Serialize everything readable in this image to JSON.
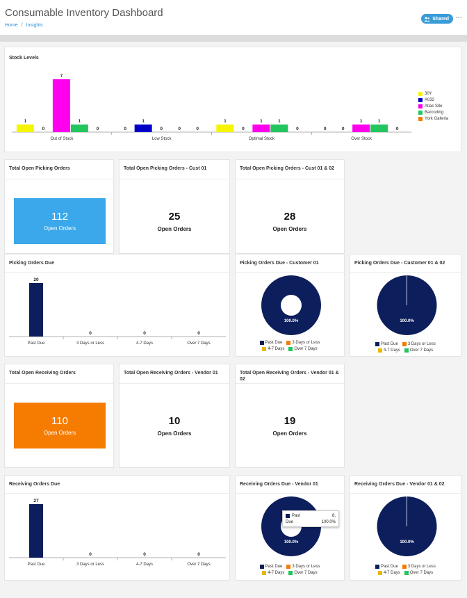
{
  "header": {
    "title": "Consumable Inventory Dashboard",
    "breadcrumb": [
      "Home",
      "/",
      "Insights"
    ],
    "shared_label": "Shared",
    "more_label": "…"
  },
  "colors": {
    "blue_kpi": "#3aa8ea",
    "orange_kpi": "#f57c00",
    "navy": "#0d1e5c",
    "pie_past_due": "#0d1e5c",
    "pie_3days": "#f57c00",
    "pie_47": "#e8b800",
    "pie_7": "#22c55e"
  },
  "stock": {
    "title": "Stock Levels",
    "chart_data": {
      "type": "bar",
      "categories": [
        "Out of Stock",
        "Low Stock",
        "Optimal Stock",
        "Over Stock"
      ],
      "series": [
        {
          "name": "30Y",
          "color": "#f5f500",
          "values": [
            1,
            0,
            1,
            0
          ]
        },
        {
          "name": "A032",
          "color": "#0000c8",
          "values": [
            0,
            1,
            0,
            0
          ]
        },
        {
          "name": "Atlas Site",
          "color": "#ff00ee",
          "values": [
            7,
            0,
            1,
            1
          ]
        },
        {
          "name": "Barcoding",
          "color": "#22c55e",
          "values": [
            1,
            0,
            1,
            1
          ]
        },
        {
          "name": "York Galleria",
          "color": "#f57c00",
          "values": [
            0,
            0,
            0,
            0
          ]
        }
      ],
      "ylim": [
        0,
        7
      ]
    }
  },
  "kpis": {
    "picking": [
      {
        "title": "Total Open Picking Orders",
        "value": "112",
        "label": "Open Orders"
      },
      {
        "title": "Total Open Picking Orders - Cust 01",
        "value": "25",
        "label": "Open Orders"
      },
      {
        "title": "Total Open Picking Orders - Cust 01 & 02",
        "value": "28",
        "label": "Open Orders"
      }
    ],
    "receiving": [
      {
        "title": "Total Open Receiving Orders",
        "value": "110",
        "label": "Open Orders"
      },
      {
        "title": "Total Open Receiving Orders - Vendor 01",
        "value": "10",
        "label": "Open Orders"
      },
      {
        "title": "Total Open Receiving Orders - Vendor 01 & 02",
        "value": "19",
        "label": "Open Orders"
      }
    ]
  },
  "picking_due": {
    "title": "Picking Orders Due",
    "chart_data": {
      "type": "bar",
      "categories": [
        "Past Due",
        "3 Days or Less",
        "4-7 Days",
        "Over 7 Days"
      ],
      "values": [
        20,
        0,
        0,
        0
      ],
      "ylim": [
        0,
        20
      ]
    }
  },
  "receiving_due": {
    "title": "Receiving Orders Due",
    "chart_data": {
      "type": "bar",
      "categories": [
        "Past Due",
        "3 Days or Less",
        "4-7 Days",
        "Over 7 Days"
      ],
      "values": [
        27,
        0,
        0,
        0
      ],
      "ylim": [
        0,
        27
      ]
    }
  },
  "pies": {
    "legend": [
      "Past Due",
      "3 Days or Less",
      "4-7 Days",
      "Over 7 Days"
    ],
    "picking_c1": {
      "title": "Picking Orders Due - Customer 01",
      "label": "100.0%",
      "donut": true
    },
    "picking_c12": {
      "title": "Picking Orders Due - Customer 01 & 02",
      "label": "100.0%",
      "donut": false
    },
    "receiving_v1": {
      "title": "Receiving Orders Due - Vendor 01",
      "label": "100.0%",
      "donut": true
    },
    "receiving_v12": {
      "title": "Receiving Orders Due - Vendor 01 & 02",
      "label": "100.0%",
      "donut": false
    }
  },
  "tooltip": {
    "label_line1": "Past",
    "label_line2": "Due",
    "value_line1": "8,",
    "value_line2": "100.0%"
  }
}
